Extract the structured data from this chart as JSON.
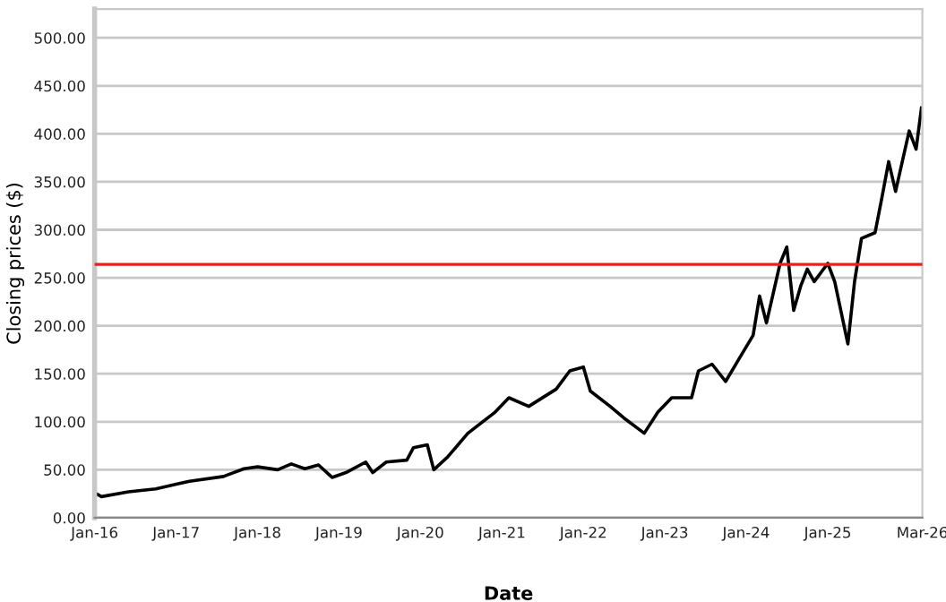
{
  "chart_data": {
    "type": "line",
    "xlabel": "Date",
    "ylabel": "Closing prices ($)",
    "x": [
      "2016-01-01",
      "2016-02",
      "2016-06",
      "2016-10",
      "2017-01",
      "2017-03",
      "2017-08",
      "2017-11",
      "2018-01",
      "2018-04",
      "2018-06",
      "2018-08",
      "2018-10",
      "2018-12",
      "2019-02",
      "2019-05",
      "2019-06",
      "2019-08",
      "2019-11",
      "2019-12",
      "2020-02",
      "2020-03",
      "2020-05",
      "2020-08",
      "2020-12",
      "2021-02",
      "2021-05",
      "2021-09",
      "2021-11",
      "2022-01",
      "2022-02",
      "2022-05",
      "2022-07",
      "2022-10",
      "2022-12",
      "2023-02",
      "2023-05",
      "2023-06",
      "2023-08",
      "2023-10",
      "2023-12",
      "2024-02",
      "2024-03",
      "2024-04",
      "2024-06",
      "2024-07",
      "2024-08",
      "2024-09",
      "2024-10",
      "2024-11",
      "2025-01",
      "2025-02",
      "2025-04",
      "2025-05",
      "2025-06",
      "2025-08",
      "2025-09",
      "2025-10",
      "2025-11",
      "2025-12",
      "2026-01",
      "2026-02",
      "2026-02-25"
    ],
    "series": [
      {
        "color": "#000000",
        "values": [
          26,
          22,
          27,
          30,
          35,
          38,
          43,
          51,
          53,
          50,
          56,
          51,
          55,
          42,
          47,
          58,
          47,
          58,
          60,
          73,
          76,
          50,
          63,
          88,
          110,
          125,
          116,
          134,
          153,
          157,
          132,
          116,
          104,
          88,
          110,
          125,
          125,
          153,
          160,
          142,
          166,
          190,
          231,
          203,
          265,
          282,
          216,
          241,
          259,
          246,
          265,
          246,
          181,
          246,
          291,
          297,
          334,
          371,
          340,
          371,
          403,
          384,
          427
        ]
      }
    ],
    "xlim": [
      "2016-01-01",
      "2026-03-01"
    ],
    "xticks": [
      {
        "value": "2016-01-01",
        "label": "Jan-16"
      },
      {
        "value": "2017-01-01",
        "label": "Jan-17"
      },
      {
        "value": "2018-01-01",
        "label": "Jan-18"
      },
      {
        "value": "2019-01-01",
        "label": "Jan-19"
      },
      {
        "value": "2020-01-01",
        "label": "Jan-20"
      },
      {
        "value": "2021-01-01",
        "label": "Jan-21"
      },
      {
        "value": "2022-01-01",
        "label": "Jan-22"
      },
      {
        "value": "2023-01-01",
        "label": "Jan-23"
      },
      {
        "value": "2024-01-01",
        "label": "Jan-24"
      },
      {
        "value": "2025-01-01",
        "label": "Jan-25"
      },
      {
        "value": "2026-03-01",
        "label": "Mar-26"
      }
    ],
    "ylim": [
      0,
      530
    ],
    "yticks": [
      {
        "value": 0,
        "label": "0.00"
      },
      {
        "value": 50,
        "label": "50.00"
      },
      {
        "value": 100,
        "label": "100.00"
      },
      {
        "value": 150,
        "label": "150.00"
      },
      {
        "value": 200,
        "label": "200.00"
      },
      {
        "value": 250,
        "label": "250.00"
      },
      {
        "value": 300,
        "label": "300.00"
      },
      {
        "value": 350,
        "label": "350.00"
      },
      {
        "value": 400,
        "label": "400.00"
      },
      {
        "value": 450,
        "label": "450.00"
      },
      {
        "value": 500,
        "label": "500.00"
      }
    ],
    "grid": "y",
    "marker": "none",
    "line_style": "solid",
    "ref_lines": [
      {
        "axis": "y",
        "value": 264,
        "color": "#e8201a"
      }
    ]
  }
}
